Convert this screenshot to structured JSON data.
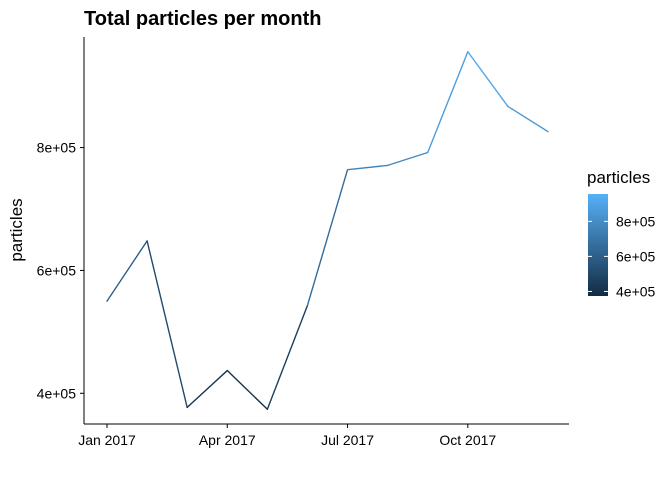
{
  "chart_data": {
    "type": "line",
    "title": "Total particles per month",
    "xlabel": "",
    "ylabel": "particles",
    "x": [
      "2017-01",
      "2017-02",
      "2017-03",
      "2017-04",
      "2017-05",
      "2017-06",
      "2017-07",
      "2017-08",
      "2017-09",
      "2017-10",
      "2017-11",
      "2017-12"
    ],
    "x_ticks": [
      "Jan 2017",
      "Apr 2017",
      "Jul 2017",
      "Oct 2017"
    ],
    "y_ticks": [
      400000,
      600000,
      800000
    ],
    "y_tick_labels": [
      "4e+05",
      "6e+05",
      "8e+05"
    ],
    "series": [
      {
        "values": [
          550000,
          648000,
          377000,
          437000,
          374000,
          543000,
          764000,
          771000,
          792000,
          956000,
          867000,
          826000
        ]
      }
    ],
    "ylim": [
      350000,
      980000
    ],
    "grid": false,
    "color_scale": {
      "low_color": "#132B43",
      "high_color": "#56B1F7",
      "low_value": 374000,
      "high_value": 956000
    },
    "legend": {
      "title": "particles",
      "placement": "right",
      "labels": [
        "8e+05",
        "6e+05",
        "4e+05"
      ],
      "values": [
        800000,
        600000,
        400000
      ]
    }
  }
}
